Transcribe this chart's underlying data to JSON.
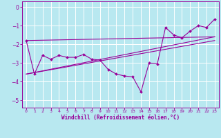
{
  "background_color": "#b8e8f0",
  "grid_color": "#ffffff",
  "line_color": "#990099",
  "xlim": [
    -0.5,
    23.5
  ],
  "ylim": [
    -5.4,
    0.3
  ],
  "yticks": [
    0,
    -1,
    -2,
    -3,
    -4,
    -5
  ],
  "xticks": [
    0,
    1,
    2,
    3,
    4,
    5,
    6,
    7,
    8,
    9,
    10,
    11,
    12,
    13,
    14,
    15,
    16,
    17,
    18,
    19,
    20,
    21,
    22,
    23
  ],
  "xlabel": "Windchill (Refroidissement éolien,°C)",
  "line1_x": [
    0,
    1,
    2,
    3,
    4,
    5,
    6,
    7,
    8,
    9,
    10,
    11,
    12,
    13,
    14,
    15,
    16,
    17,
    18,
    19,
    20,
    21,
    22,
    23
  ],
  "line1_y": [
    -1.8,
    -3.6,
    -2.6,
    -2.8,
    -2.6,
    -2.7,
    -2.7,
    -2.55,
    -2.8,
    -2.85,
    -3.35,
    -3.6,
    -3.7,
    -3.75,
    -4.55,
    -3.0,
    -3.05,
    -1.1,
    -1.5,
    -1.65,
    -1.3,
    -1.0,
    -1.1,
    -0.65
  ],
  "trend1_x": [
    0,
    23
  ],
  "trend1_y": [
    -1.8,
    -1.6
  ],
  "trend2_x": [
    0,
    23
  ],
  "trend2_y": [
    -3.6,
    -1.8
  ],
  "trend3_x": [
    0,
    23
  ],
  "trend3_y": [
    -3.6,
    -1.6
  ]
}
